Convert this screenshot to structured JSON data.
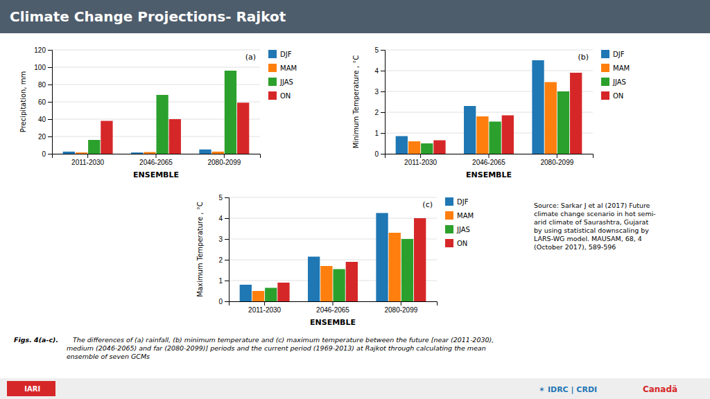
{
  "title": "Climate Change Projections- Rajkot",
  "annotations": [
    "Source: Sarkar J et al (2017) Future\nclimate change scenario in hot semi-\narid climate of Saurashtra, Gujarat\nby using statistical downscaling by\nLARS-WG model. MAUSAM, 68, 4\n(October 2017), 589-596",
    "Figs. 4(a-c).",
    "   The differences of (a) rainfall, (b) minimum temperature and (c) maximum temperature between the future [near (2011-2030),\nmedium (2046-2065) and far (2080-2099)] periods and the current period (1969-2013) at Rajkot through calculating the mean\nensemble of seven GCMs",
    " IARI",
    "✶ IDRC | CRDI",
    "Canadä"
  ],
  "chart_data": [
    {
      "type": "bar",
      "annotations": [
        "(a)"
      ],
      "x_label": "ENSEMBLE",
      "y_label": "Precipitation, mm",
      "categories": [
        "2011-2030",
        "2046-2065",
        "2080-2099"
      ],
      "series": [
        {
          "name": "DJF",
          "values": [
            2.5,
            1.5,
            5.0
          ]
        },
        {
          "name": "MAM",
          "values": [
            1.5,
            2.0,
            2.5
          ]
        },
        {
          "name": "JJAS",
          "values": [
            16,
            68,
            96
          ]
        },
        {
          "name": "ON",
          "values": [
            38,
            40,
            59
          ]
        }
      ],
      "ylim": [
        0,
        120
      ],
      "yticks": [
        0,
        20,
        40,
        60,
        80,
        100,
        120
      ],
      "grid": true,
      "legend": "right"
    },
    {
      "type": "bar",
      "annotations": [
        "(b)"
      ],
      "x_label": "ENSEMBLE",
      "y_label": "Minimum Temperature , °C",
      "categories": [
        "2011-2030",
        "2046-2065",
        "2080-2099"
      ],
      "series": [
        {
          "name": "DJF",
          "values": [
            0.85,
            2.3,
            4.5
          ]
        },
        {
          "name": "MAM",
          "values": [
            0.6,
            1.8,
            3.45
          ]
        },
        {
          "name": "JJAS",
          "values": [
            0.5,
            1.55,
            3.0
          ]
        },
        {
          "name": "ON",
          "values": [
            0.65,
            1.85,
            3.9
          ]
        }
      ],
      "ylim": [
        0,
        5
      ],
      "yticks": [
        0,
        1,
        2,
        3,
        4,
        5
      ],
      "grid": true,
      "legend": "right"
    },
    {
      "type": "bar",
      "annotations": [
        "(c)"
      ],
      "x_label": "ENSEMBLE",
      "y_label": "Maximum Temperature , °C",
      "categories": [
        "2011-2030",
        "2046-2065",
        "2080-2099"
      ],
      "series": [
        {
          "name": "DJF",
          "values": [
            0.8,
            2.15,
            4.25
          ]
        },
        {
          "name": "MAM",
          "values": [
            0.5,
            1.7,
            3.3
          ]
        },
        {
          "name": "JJAS",
          "values": [
            0.65,
            1.55,
            3.0
          ]
        },
        {
          "name": "ON",
          "values": [
            0.9,
            1.9,
            4.0
          ]
        }
      ],
      "ylim": [
        0,
        5
      ],
      "yticks": [
        0,
        1,
        2,
        3,
        4,
        5
      ],
      "grid": true,
      "legend": "right"
    }
  ]
}
